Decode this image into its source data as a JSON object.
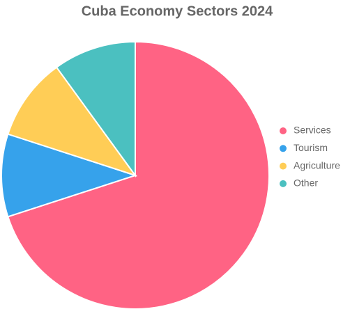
{
  "chart_data": {
    "type": "pie",
    "title": "Cuba Economy Sectors 2024",
    "categories": [
      "Services",
      "Tourism",
      "Agriculture",
      "Other"
    ],
    "values": [
      70,
      10,
      10,
      10
    ],
    "colors": [
      "#ff6384",
      "#36a2eb",
      "#ffcd56",
      "#4bc0c0"
    ],
    "legend": "right"
  }
}
